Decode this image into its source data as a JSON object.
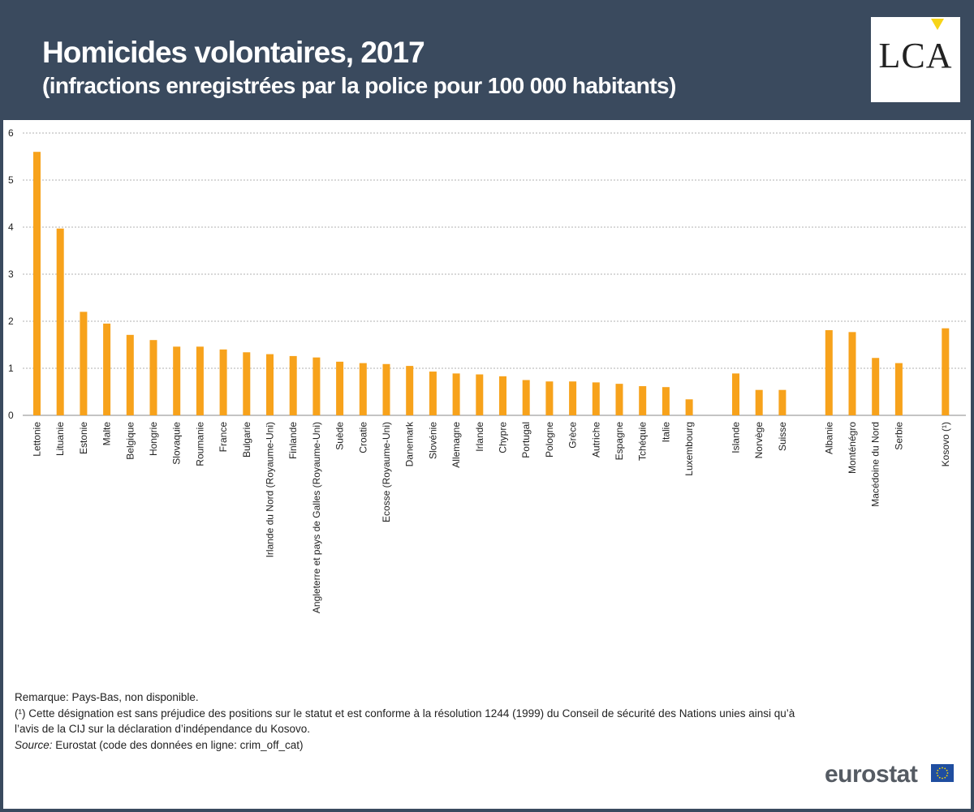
{
  "header": {
    "title": "Homicides volontaires, 2017",
    "subtitle": "(infractions enregistrées par la police pour 100 000 habitants)",
    "logo_text": "LCA"
  },
  "colors": {
    "header_bg": "#3a4a5e",
    "bar": "#f7a21b",
    "grid": "#b0b0b0",
    "text": "#222222"
  },
  "chart_data": {
    "type": "bar",
    "title": "Homicides volontaires, 2017",
    "subtitle": "(infractions enregistrées par la police pour 100 000 habitants)",
    "xlabel": "",
    "ylabel": "",
    "ylim": [
      0,
      6
    ],
    "yticks": [
      0,
      1,
      2,
      3,
      4,
      5,
      6
    ],
    "grid": true,
    "groups": [
      {
        "categories": [
          "Lettonie",
          "Lituanie",
          "Estonie",
          "Malte",
          "Belgique",
          "Hongrie",
          "Slovaquie",
          "Roumanie",
          "France",
          "Bulgarie",
          "Irlande du Nord (Royaume-Uni)",
          "Finlande",
          "Angleterre et pays de Galles (Royaume-Uni)",
          "Suède",
          "Croatie",
          "Ecosse (Royaume-Uni)",
          "Danemark",
          "Slovénie",
          "Allemagne",
          "Irlande",
          "Chypre",
          "Portugal",
          "Pologne",
          "Grèce",
          "Autriche",
          "Espagne",
          "Tchéquie",
          "Italie",
          "Luxembourg"
        ],
        "values": [
          5.6,
          3.97,
          2.2,
          1.95,
          1.71,
          1.6,
          1.46,
          1.46,
          1.4,
          1.34,
          1.3,
          1.26,
          1.23,
          1.14,
          1.11,
          1.09,
          1.05,
          0.93,
          0.89,
          0.87,
          0.83,
          0.75,
          0.72,
          0.72,
          0.7,
          0.67,
          0.62,
          0.6,
          0.34
        ]
      },
      {
        "categories": [
          "Islande",
          "Norvège",
          "Suisse"
        ],
        "values": [
          0.89,
          0.54,
          0.54
        ]
      },
      {
        "categories": [
          "Albanie",
          "Monténégro",
          "Macédoine du Nord",
          "Serbie"
        ],
        "values": [
          1.81,
          1.77,
          1.22,
          1.11
        ]
      },
      {
        "categories": [
          "Kosovo (¹)"
        ],
        "values": [
          1.85
        ]
      }
    ]
  },
  "notes": {
    "remark": "Remarque: Pays-Bas, non disponible.",
    "footnote_line1": "(¹) Cette désignation est sans préjudice des positions sur le statut et est conforme à la résolution 1244 (1999) du Conseil de sécurité des Nations unies ainsi qu’à",
    "footnote_line2": "l’avis de la CIJ sur la déclaration d’indépendance du Kosovo.",
    "source_label": "Source:",
    "source_text": " Eurostat (code des données en ligne: crim_off_cat)"
  },
  "branding": {
    "eurostat": "eurostat"
  }
}
